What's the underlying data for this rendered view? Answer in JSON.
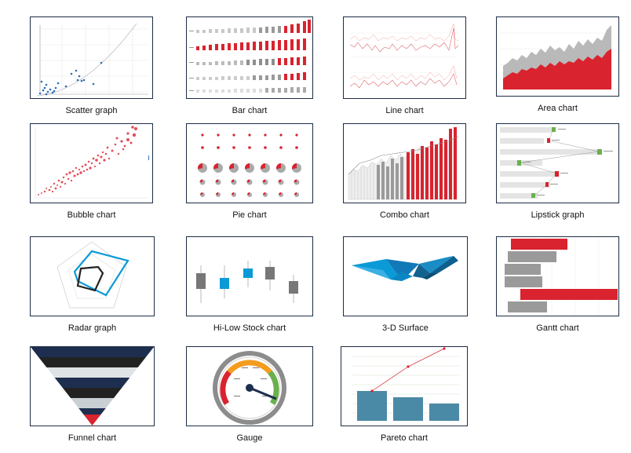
{
  "gallery": {
    "items": [
      {
        "label": "Scatter graph"
      },
      {
        "label": "Bar chart"
      },
      {
        "label": "Line chart"
      },
      {
        "label": "Area chart"
      },
      {
        "label": "Bubble chart"
      },
      {
        "label": "Pie chart"
      },
      {
        "label": "Combo chart"
      },
      {
        "label": "Lipstick graph"
      },
      {
        "label": "Radar graph"
      },
      {
        "label": "Hi-Low Stock chart"
      },
      {
        "label": "3-D Surface"
      },
      {
        "label": "Gantt chart"
      },
      {
        "label": "Funnel chart"
      },
      {
        "label": "Gauge"
      },
      {
        "label": "Pareto chart"
      }
    ]
  },
  "colors": {
    "border": "#1d2d44",
    "red": "#d9232e",
    "gray": "#9a9a9a",
    "blue": "#0a9ad7",
    "navy": "#1e2e4f",
    "green": "#6ab04c",
    "orange": "#f39c1f",
    "teal": "#4b8aa6"
  }
}
